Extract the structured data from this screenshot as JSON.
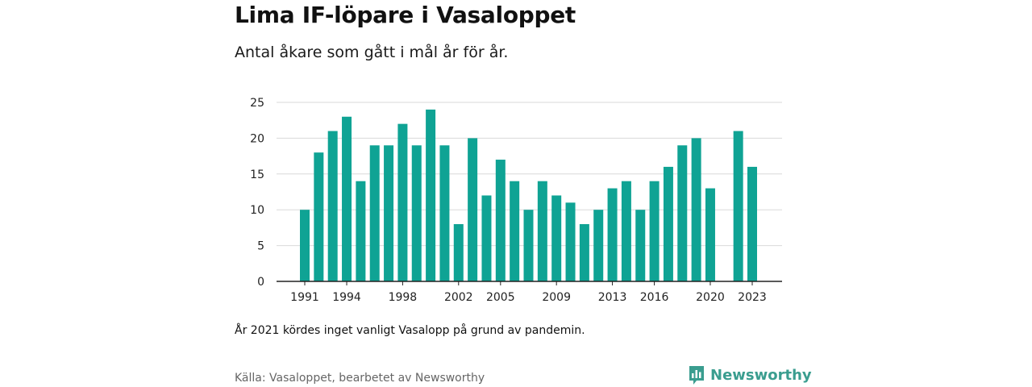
{
  "title": "Lima IF-löpare i Vasaloppet",
  "subtitle": "Antal åkare som gått i mål år för år.",
  "note": "År 2021 kördes inget vanligt Vasalopp på grund av pandemin.",
  "source": "Källa: Vasaloppet, bearbetet av Newsworthy",
  "brand": {
    "name": "Newsworthy",
    "icon": "newsworthy-logo-icon",
    "color": "#3a9d8f"
  },
  "colors": {
    "bar": "#0fa394",
    "grid": "#d9d9d9",
    "axis": "#222222"
  },
  "chart_data": {
    "type": "bar",
    "title": "Lima IF-löpare i Vasaloppet",
    "subtitle": "Antal åkare som gått i mål år för år.",
    "categories": [
      1991,
      1992,
      1993,
      1994,
      1995,
      1996,
      1997,
      1998,
      1999,
      2000,
      2001,
      2002,
      2003,
      2004,
      2005,
      2006,
      2007,
      2008,
      2009,
      2010,
      2011,
      2012,
      2013,
      2014,
      2015,
      2016,
      2017,
      2018,
      2019,
      2020,
      2021,
      2022,
      2023
    ],
    "values": [
      10,
      18,
      21,
      23,
      14,
      19,
      19,
      22,
      19,
      24,
      19,
      8,
      20,
      12,
      17,
      14,
      10,
      14,
      12,
      11,
      8,
      10,
      13,
      14,
      10,
      14,
      16,
      19,
      20,
      13,
      null,
      21,
      16
    ],
    "x_tick_labels": [
      "1991",
      "1994",
      "1998",
      "2002",
      "2005",
      "2009",
      "2013",
      "2016",
      "2020",
      "2023"
    ],
    "y_ticks": [
      0,
      5,
      10,
      15,
      20,
      25
    ],
    "ylim": [
      0,
      25
    ],
    "xlabel": "",
    "ylabel": "",
    "grid": true,
    "legend": "none"
  }
}
